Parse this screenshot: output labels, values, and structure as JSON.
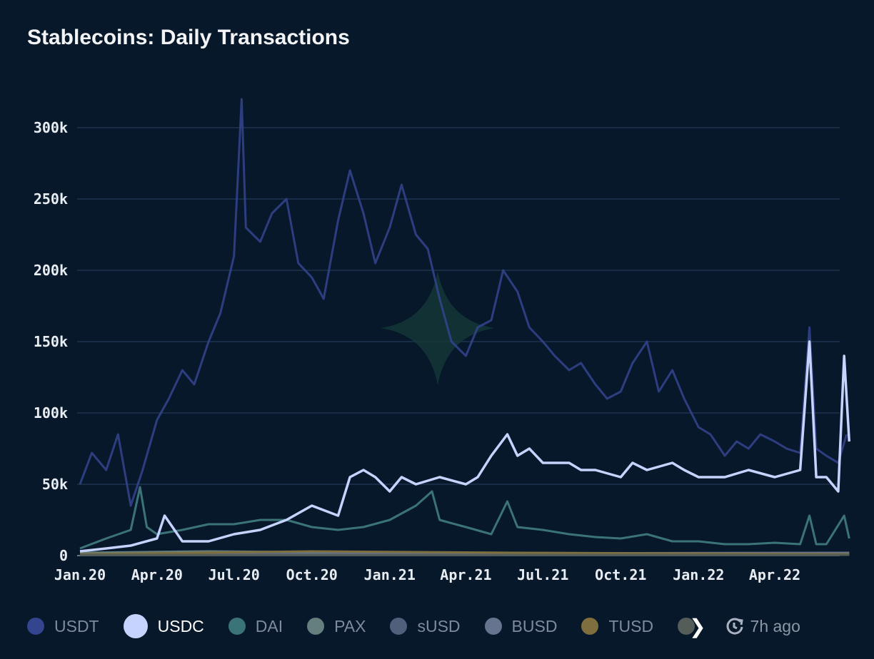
{
  "title": "Stablecoins: Daily Transactions",
  "updated": "7h ago",
  "icons": {
    "more": "chevron-right-icon",
    "updated": "clock-refresh-icon",
    "watermark": "four-point-star-logo"
  },
  "chart_data": {
    "type": "line",
    "title": "Stablecoins: Daily Transactions",
    "ylim": [
      0,
      330000
    ],
    "y_ticks": [
      {
        "v": 0,
        "label": "0"
      },
      {
        "v": 50000,
        "label": "50k"
      },
      {
        "v": 100000,
        "label": "100k"
      },
      {
        "v": 150000,
        "label": "150k"
      },
      {
        "v": 200000,
        "label": "200k"
      },
      {
        "v": 250000,
        "label": "250k"
      },
      {
        "v": 300000,
        "label": "300k"
      }
    ],
    "x_ticks": [
      {
        "date": "2020-01-01",
        "label": "Jan.20"
      },
      {
        "date": "2020-04-01",
        "label": "Apr.20"
      },
      {
        "date": "2020-07-01",
        "label": "Jul.20"
      },
      {
        "date": "2020-10-01",
        "label": "Oct.20"
      },
      {
        "date": "2021-01-01",
        "label": "Jan.21"
      },
      {
        "date": "2021-04-01",
        "label": "Apr.21"
      },
      {
        "date": "2021-07-01",
        "label": "Jul.21"
      },
      {
        "date": "2021-10-01",
        "label": "Oct.21"
      },
      {
        "date": "2022-01-01",
        "label": "Jan.22"
      },
      {
        "date": "2022-04-01",
        "label": "Apr.22"
      }
    ],
    "xlim": [
      "2020-01-01",
      "2022-06-28"
    ],
    "grid": true,
    "legend": "bottom",
    "series": [
      {
        "name": "USDT",
        "color": "#34448f",
        "active": false,
        "x": [
          "2020-01-01",
          "2020-01-15",
          "2020-02-01",
          "2020-02-15",
          "2020-03-01",
          "2020-03-15",
          "2020-04-01",
          "2020-04-15",
          "2020-05-01",
          "2020-05-15",
          "2020-06-01",
          "2020-06-15",
          "2020-07-01",
          "2020-07-10",
          "2020-07-15",
          "2020-08-01",
          "2020-08-15",
          "2020-09-01",
          "2020-09-15",
          "2020-10-01",
          "2020-10-15",
          "2020-11-01",
          "2020-11-15",
          "2020-12-01",
          "2020-12-15",
          "2021-01-01",
          "2021-01-15",
          "2021-02-01",
          "2021-02-15",
          "2021-03-01",
          "2021-03-15",
          "2021-04-01",
          "2021-04-15",
          "2021-05-01",
          "2021-05-15",
          "2021-06-01",
          "2021-06-15",
          "2021-07-01",
          "2021-07-15",
          "2021-08-01",
          "2021-08-15",
          "2021-09-01",
          "2021-09-15",
          "2021-10-01",
          "2021-10-15",
          "2021-11-01",
          "2021-11-15",
          "2021-12-01",
          "2021-12-15",
          "2022-01-01",
          "2022-01-15",
          "2022-02-01",
          "2022-02-15",
          "2022-03-01",
          "2022-03-15",
          "2022-04-01",
          "2022-04-15",
          "2022-05-01",
          "2022-05-12",
          "2022-05-20",
          "2022-06-01",
          "2022-06-15",
          "2022-06-25"
        ],
        "y": [
          50000,
          72000,
          60000,
          85000,
          35000,
          60000,
          95000,
          110000,
          130000,
          120000,
          150000,
          170000,
          210000,
          320000,
          230000,
          220000,
          240000,
          250000,
          205000,
          195000,
          180000,
          235000,
          270000,
          240000,
          205000,
          230000,
          260000,
          225000,
          215000,
          180000,
          150000,
          140000,
          160000,
          165000,
          200000,
          185000,
          160000,
          150000,
          140000,
          130000,
          135000,
          120000,
          110000,
          115000,
          135000,
          150000,
          115000,
          130000,
          110000,
          90000,
          85000,
          70000,
          80000,
          75000,
          85000,
          80000,
          75000,
          72000,
          160000,
          75000,
          70000,
          65000,
          85000
        ]
      },
      {
        "name": "USDC",
        "color": "#c6d3ff",
        "active": true,
        "x": [
          "2020-01-01",
          "2020-02-01",
          "2020-03-01",
          "2020-04-01",
          "2020-04-10",
          "2020-05-01",
          "2020-06-01",
          "2020-07-01",
          "2020-08-01",
          "2020-09-01",
          "2020-10-01",
          "2020-11-01",
          "2020-11-15",
          "2020-12-01",
          "2020-12-15",
          "2021-01-01",
          "2021-01-15",
          "2021-02-01",
          "2021-03-01",
          "2021-04-01",
          "2021-04-15",
          "2021-05-01",
          "2021-05-20",
          "2021-06-01",
          "2021-06-15",
          "2021-07-01",
          "2021-08-01",
          "2021-08-15",
          "2021-09-01",
          "2021-10-01",
          "2021-10-15",
          "2021-11-01",
          "2021-12-01",
          "2021-12-15",
          "2022-01-01",
          "2022-02-01",
          "2022-03-01",
          "2022-04-01",
          "2022-05-01",
          "2022-05-12",
          "2022-05-20",
          "2022-06-01",
          "2022-06-15",
          "2022-06-22",
          "2022-06-28"
        ],
        "y": [
          3000,
          5000,
          7000,
          12000,
          28000,
          10000,
          10000,
          15000,
          18000,
          25000,
          35000,
          28000,
          55000,
          60000,
          55000,
          45000,
          55000,
          50000,
          55000,
          50000,
          55000,
          70000,
          85000,
          70000,
          75000,
          65000,
          65000,
          60000,
          60000,
          55000,
          65000,
          60000,
          65000,
          60000,
          55000,
          55000,
          60000,
          55000,
          60000,
          150000,
          55000,
          55000,
          45000,
          140000,
          80000
        ]
      },
      {
        "name": "DAI",
        "color": "#3b7478",
        "active": false,
        "x": [
          "2020-01-01",
          "2020-02-01",
          "2020-03-01",
          "2020-03-12",
          "2020-03-20",
          "2020-04-01",
          "2020-05-01",
          "2020-06-01",
          "2020-07-01",
          "2020-08-01",
          "2020-09-01",
          "2020-10-01",
          "2020-11-01",
          "2020-12-01",
          "2021-01-01",
          "2021-02-01",
          "2021-02-20",
          "2021-03-01",
          "2021-04-01",
          "2021-05-01",
          "2021-05-20",
          "2021-06-01",
          "2021-07-01",
          "2021-08-01",
          "2021-09-01",
          "2021-10-01",
          "2021-11-01",
          "2021-12-01",
          "2022-01-01",
          "2022-02-01",
          "2022-03-01",
          "2022-04-01",
          "2022-05-01",
          "2022-05-12",
          "2022-05-20",
          "2022-06-01",
          "2022-06-22",
          "2022-06-28"
        ],
        "y": [
          5000,
          12000,
          18000,
          48000,
          20000,
          15000,
          18000,
          22000,
          22000,
          25000,
          25000,
          20000,
          18000,
          20000,
          25000,
          35000,
          45000,
          25000,
          20000,
          15000,
          38000,
          20000,
          18000,
          15000,
          13000,
          12000,
          15000,
          10000,
          10000,
          8000,
          8000,
          9000,
          8000,
          28000,
          8000,
          8000,
          28000,
          12000
        ]
      },
      {
        "name": "PAX",
        "color": "#647f7d",
        "active": false,
        "x": [
          "2020-01-01",
          "2020-06-01",
          "2021-01-01",
          "2022-06-28"
        ],
        "y": [
          2000,
          3000,
          2000,
          1500
        ]
      },
      {
        "name": "sUSD",
        "color": "#50607c",
        "active": false,
        "x": [
          "2020-01-01",
          "2021-01-01",
          "2022-06-28"
        ],
        "y": [
          800,
          1200,
          1000
        ]
      },
      {
        "name": "BUSD",
        "color": "#66748f",
        "active": false,
        "x": [
          "2020-01-01",
          "2021-01-01",
          "2022-06-28"
        ],
        "y": [
          500,
          1500,
          2000
        ]
      },
      {
        "name": "TUSD",
        "color": "#7f6f3e",
        "active": false,
        "x": [
          "2020-01-01",
          "2020-10-01",
          "2021-06-01",
          "2022-06-28"
        ],
        "y": [
          1000,
          3000,
          2000,
          1000
        ]
      },
      {
        "name": "",
        "color": "#545d58",
        "active": false,
        "x": [
          "2020-01-01",
          "2022-06-28"
        ],
        "y": [
          500,
          500
        ]
      }
    ]
  }
}
